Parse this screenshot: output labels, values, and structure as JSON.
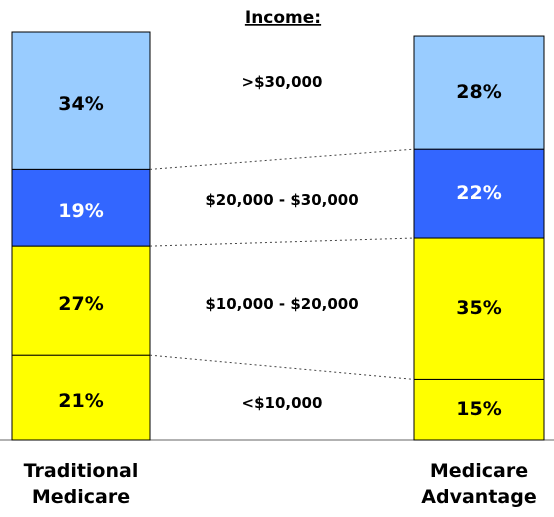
{
  "chart_data": {
    "type": "stacked-bar",
    "title": "Income:",
    "categories": [
      "Traditional Medicare",
      "Medicare Advantage"
    ],
    "series": [
      {
        "name": "<$10,000",
        "color": "#ffff00",
        "values": [
          21,
          15
        ],
        "value_labels": [
          "21%",
          "15%"
        ]
      },
      {
        "name": "$10,000 - $20,000",
        "color": "#ffff00",
        "values": [
          27,
          35
        ],
        "value_labels": [
          "27%",
          "35%"
        ]
      },
      {
        "name": "$20,000 - $30,000",
        "color": "#3366ff",
        "values": [
          19,
          22
        ],
        "value_labels": [
          "19%",
          "22%"
        ]
      },
      {
        "name": ">$30,000",
        "color": "#99ccff",
        "values": [
          34,
          28
        ],
        "value_labels": [
          "34%",
          "28%"
        ]
      }
    ]
  }
}
